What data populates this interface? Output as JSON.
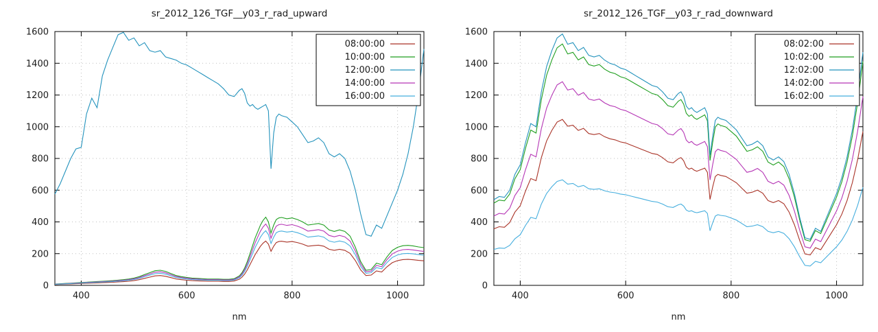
{
  "page": {
    "background": "#ffffff"
  },
  "chart_data": [
    {
      "type": "line",
      "name": "upward-radiance",
      "title": "sr_2012_126_TGF__y03_r_rad_upward",
      "xlabel": "nm",
      "ylabel": "",
      "xlim": [
        350,
        1050
      ],
      "ylim": [
        0,
        1600
      ],
      "xticks": [
        400,
        600,
        800,
        1000
      ],
      "yticks": [
        0,
        200,
        400,
        600,
        800,
        1000,
        1200,
        1400,
        1600
      ],
      "grid": true,
      "legend_position": "top-right",
      "x": [
        350,
        360,
        370,
        380,
        390,
        400,
        410,
        420,
        430,
        440,
        450,
        460,
        470,
        480,
        490,
        500,
        510,
        520,
        530,
        540,
        550,
        560,
        570,
        580,
        590,
        600,
        610,
        620,
        630,
        640,
        650,
        660,
        670,
        680,
        690,
        700,
        705,
        710,
        715,
        720,
        725,
        730,
        735,
        740,
        745,
        750,
        755,
        760,
        765,
        770,
        775,
        780,
        790,
        800,
        810,
        820,
        830,
        840,
        850,
        860,
        870,
        880,
        890,
        900,
        910,
        920,
        930,
        940,
        950,
        960,
        970,
        980,
        990,
        1000,
        1010,
        1020,
        1030,
        1040,
        1050
      ],
      "shapes": {
        "main": [
          575,
          640,
          720,
          800,
          860,
          870,
          1080,
          1180,
          1120,
          1320,
          1420,
          1500,
          1580,
          1595,
          1545,
          1560,
          1510,
          1530,
          1480,
          1470,
          1480,
          1440,
          1430,
          1420,
          1400,
          1390,
          1370,
          1350,
          1330,
          1310,
          1290,
          1270,
          1240,
          1200,
          1190,
          1230,
          1240,
          1210,
          1150,
          1130,
          1140,
          1120,
          1110,
          1120,
          1130,
          1140,
          1100,
          735,
          960,
          1060,
          1080,
          1070,
          1060,
          1030,
          1000,
          950,
          900,
          910,
          930,
          900,
          830,
          810,
          830,
          800,
          720,
          600,
          450,
          320,
          310,
          380,
          360,
          440,
          520,
          600,
          700,
          830,
          1000,
          1220,
          1490
        ],
        "cluster": [
          8,
          10,
          12,
          14,
          16,
          18,
          20,
          22,
          24,
          26,
          28,
          30,
          33,
          36,
          40,
          46,
          55,
          68,
          80,
          92,
          95,
          88,
          75,
          62,
          55,
          50,
          46,
          44,
          42,
          40,
          40,
          40,
          38,
          38,
          42,
          60,
          80,
          110,
          150,
          200,
          250,
          300,
          340,
          380,
          410,
          430,
          400,
          330,
          380,
          415,
          425,
          428,
          420,
          425,
          415,
          400,
          380,
          385,
          390,
          380,
          350,
          340,
          350,
          340,
          310,
          240,
          150,
          95,
          100,
          140,
          130,
          180,
          220,
          240,
          250,
          252,
          248,
          242,
          238
        ]
      },
      "series": [
        {
          "name": "08:00:00",
          "color": "#a93226",
          "shape": "cluster",
          "scale": 0.65
        },
        {
          "name": "10:00:00",
          "color": "#1e9e1e",
          "shape": "cluster",
          "scale": 1.0
        },
        {
          "name": "12:00:00",
          "color": "#2292bc",
          "shape": "main",
          "scale": 1.0
        },
        {
          "name": "14:00:00",
          "color": "#b535b5",
          "shape": "cluster",
          "scale": 0.9
        },
        {
          "name": "16:00:00",
          "color": "#45aede",
          "shape": "cluster",
          "scale": 0.8
        }
      ]
    },
    {
      "type": "line",
      "name": "downward-radiance",
      "title": "sr_2012_126_TGF__y03_r_rad_downward",
      "xlabel": "nm",
      "ylabel": "",
      "xlim": [
        350,
        1050
      ],
      "ylim": [
        0,
        1600
      ],
      "xticks": [
        400,
        600,
        800,
        1000
      ],
      "yticks": [
        0,
        200,
        400,
        600,
        800,
        1000,
        1200,
        1400,
        1600
      ],
      "grid": true,
      "legend_position": "top-right",
      "x": [
        350,
        360,
        370,
        380,
        390,
        400,
        410,
        420,
        430,
        440,
        450,
        460,
        470,
        480,
        490,
        500,
        510,
        520,
        530,
        540,
        550,
        560,
        570,
        580,
        590,
        600,
        610,
        620,
        630,
        640,
        650,
        660,
        670,
        680,
        690,
        700,
        705,
        710,
        715,
        720,
        725,
        730,
        735,
        740,
        745,
        750,
        755,
        760,
        765,
        770,
        775,
        780,
        790,
        800,
        810,
        820,
        830,
        840,
        850,
        860,
        870,
        880,
        890,
        900,
        910,
        920,
        930,
        940,
        950,
        960,
        970,
        980,
        990,
        1000,
        1010,
        1020,
        1030,
        1040,
        1050
      ],
      "shapes": {
        "main": [
          540,
          560,
          555,
          600,
          700,
          760,
          900,
          1020,
          1000,
          1220,
          1380,
          1480,
          1560,
          1585,
          1520,
          1530,
          1480,
          1500,
          1450,
          1440,
          1450,
          1420,
          1400,
          1390,
          1370,
          1360,
          1340,
          1320,
          1300,
          1280,
          1260,
          1250,
          1220,
          1180,
          1170,
          1210,
          1220,
          1190,
          1130,
          1110,
          1120,
          1100,
          1090,
          1100,
          1110,
          1120,
          1080,
          820,
          940,
          1040,
          1060,
          1050,
          1040,
          1010,
          980,
          930,
          880,
          890,
          910,
          880,
          810,
          790,
          810,
          780,
          700,
          580,
          430,
          300,
          290,
          360,
          340,
          420,
          500,
          580,
          680,
          810,
          980,
          1200,
          1470
        ]
      },
      "series": [
        {
          "name": "08:02:00",
          "color": "#a93226",
          "shape": "main",
          "scale": 0.66
        },
        {
          "name": "10:02:00",
          "color": "#1e9e1e",
          "shape": "main",
          "scale": 0.96
        },
        {
          "name": "12:02:00",
          "color": "#2292bc",
          "shape": "main",
          "scale": 1.0
        },
        {
          "name": "14:02:00",
          "color": "#b535b5",
          "shape": "main",
          "scale": 0.81
        },
        {
          "name": "16:02:00",
          "color": "#45aede",
          "shape": "main",
          "scale": 0.42
        }
      ]
    }
  ]
}
